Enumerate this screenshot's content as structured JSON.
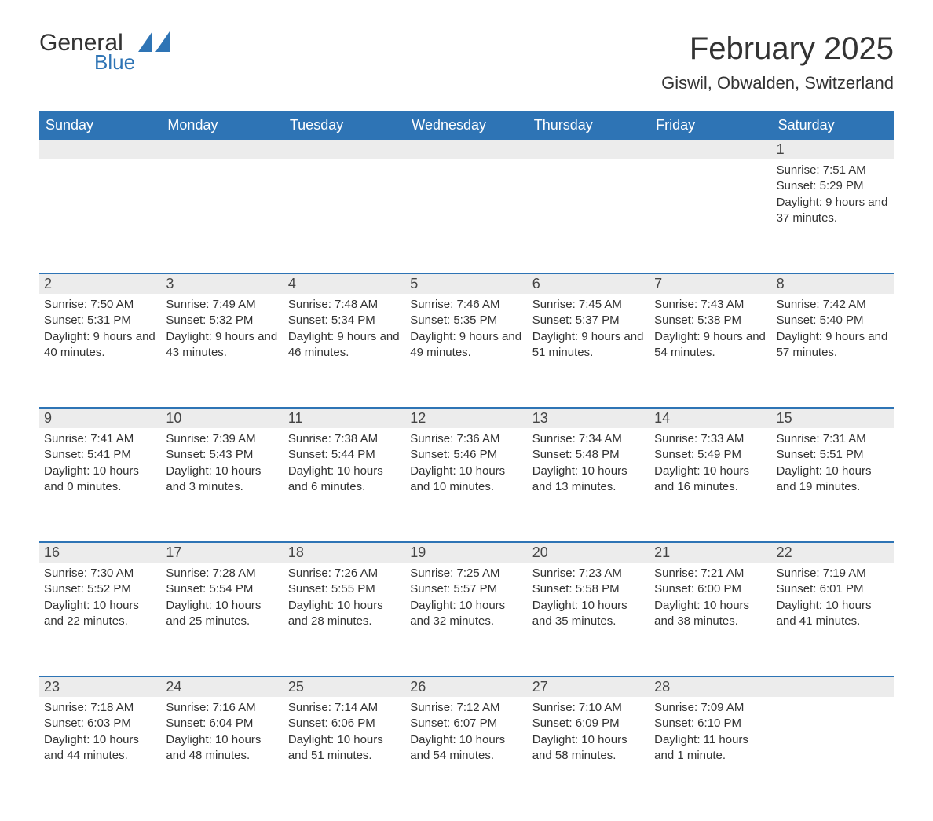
{
  "logo": {
    "general": "General",
    "blue": "Blue",
    "brand_color": "#2e74b5"
  },
  "title": "February 2025",
  "location": "Giswil, Obwalden, Switzerland",
  "colors": {
    "header_bg": "#2e74b5",
    "header_text": "#ffffff",
    "stripe_bg": "#ececec",
    "text": "#333333",
    "rule": "#2e74b5"
  },
  "weekdays": [
    "Sunday",
    "Monday",
    "Tuesday",
    "Wednesday",
    "Thursday",
    "Friday",
    "Saturday"
  ],
  "weeks": [
    [
      null,
      null,
      null,
      null,
      null,
      null,
      {
        "day": "1",
        "sunrise": "Sunrise: 7:51 AM",
        "sunset": "Sunset: 5:29 PM",
        "daylight": "Daylight: 9 hours and 37 minutes."
      }
    ],
    [
      {
        "day": "2",
        "sunrise": "Sunrise: 7:50 AM",
        "sunset": "Sunset: 5:31 PM",
        "daylight": "Daylight: 9 hours and 40 minutes."
      },
      {
        "day": "3",
        "sunrise": "Sunrise: 7:49 AM",
        "sunset": "Sunset: 5:32 PM",
        "daylight": "Daylight: 9 hours and 43 minutes."
      },
      {
        "day": "4",
        "sunrise": "Sunrise: 7:48 AM",
        "sunset": "Sunset: 5:34 PM",
        "daylight": "Daylight: 9 hours and 46 minutes."
      },
      {
        "day": "5",
        "sunrise": "Sunrise: 7:46 AM",
        "sunset": "Sunset: 5:35 PM",
        "daylight": "Daylight: 9 hours and 49 minutes."
      },
      {
        "day": "6",
        "sunrise": "Sunrise: 7:45 AM",
        "sunset": "Sunset: 5:37 PM",
        "daylight": "Daylight: 9 hours and 51 minutes."
      },
      {
        "day": "7",
        "sunrise": "Sunrise: 7:43 AM",
        "sunset": "Sunset: 5:38 PM",
        "daylight": "Daylight: 9 hours and 54 minutes."
      },
      {
        "day": "8",
        "sunrise": "Sunrise: 7:42 AM",
        "sunset": "Sunset: 5:40 PM",
        "daylight": "Daylight: 9 hours and 57 minutes."
      }
    ],
    [
      {
        "day": "9",
        "sunrise": "Sunrise: 7:41 AM",
        "sunset": "Sunset: 5:41 PM",
        "daylight": "Daylight: 10 hours and 0 minutes."
      },
      {
        "day": "10",
        "sunrise": "Sunrise: 7:39 AM",
        "sunset": "Sunset: 5:43 PM",
        "daylight": "Daylight: 10 hours and 3 minutes."
      },
      {
        "day": "11",
        "sunrise": "Sunrise: 7:38 AM",
        "sunset": "Sunset: 5:44 PM",
        "daylight": "Daylight: 10 hours and 6 minutes."
      },
      {
        "day": "12",
        "sunrise": "Sunrise: 7:36 AM",
        "sunset": "Sunset: 5:46 PM",
        "daylight": "Daylight: 10 hours and 10 minutes."
      },
      {
        "day": "13",
        "sunrise": "Sunrise: 7:34 AM",
        "sunset": "Sunset: 5:48 PM",
        "daylight": "Daylight: 10 hours and 13 minutes."
      },
      {
        "day": "14",
        "sunrise": "Sunrise: 7:33 AM",
        "sunset": "Sunset: 5:49 PM",
        "daylight": "Daylight: 10 hours and 16 minutes."
      },
      {
        "day": "15",
        "sunrise": "Sunrise: 7:31 AM",
        "sunset": "Sunset: 5:51 PM",
        "daylight": "Daylight: 10 hours and 19 minutes."
      }
    ],
    [
      {
        "day": "16",
        "sunrise": "Sunrise: 7:30 AM",
        "sunset": "Sunset: 5:52 PM",
        "daylight": "Daylight: 10 hours and 22 minutes."
      },
      {
        "day": "17",
        "sunrise": "Sunrise: 7:28 AM",
        "sunset": "Sunset: 5:54 PM",
        "daylight": "Daylight: 10 hours and 25 minutes."
      },
      {
        "day": "18",
        "sunrise": "Sunrise: 7:26 AM",
        "sunset": "Sunset: 5:55 PM",
        "daylight": "Daylight: 10 hours and 28 minutes."
      },
      {
        "day": "19",
        "sunrise": "Sunrise: 7:25 AM",
        "sunset": "Sunset: 5:57 PM",
        "daylight": "Daylight: 10 hours and 32 minutes."
      },
      {
        "day": "20",
        "sunrise": "Sunrise: 7:23 AM",
        "sunset": "Sunset: 5:58 PM",
        "daylight": "Daylight: 10 hours and 35 minutes."
      },
      {
        "day": "21",
        "sunrise": "Sunrise: 7:21 AM",
        "sunset": "Sunset: 6:00 PM",
        "daylight": "Daylight: 10 hours and 38 minutes."
      },
      {
        "day": "22",
        "sunrise": "Sunrise: 7:19 AM",
        "sunset": "Sunset: 6:01 PM",
        "daylight": "Daylight: 10 hours and 41 minutes."
      }
    ],
    [
      {
        "day": "23",
        "sunrise": "Sunrise: 7:18 AM",
        "sunset": "Sunset: 6:03 PM",
        "daylight": "Daylight: 10 hours and 44 minutes."
      },
      {
        "day": "24",
        "sunrise": "Sunrise: 7:16 AM",
        "sunset": "Sunset: 6:04 PM",
        "daylight": "Daylight: 10 hours and 48 minutes."
      },
      {
        "day": "25",
        "sunrise": "Sunrise: 7:14 AM",
        "sunset": "Sunset: 6:06 PM",
        "daylight": "Daylight: 10 hours and 51 minutes."
      },
      {
        "day": "26",
        "sunrise": "Sunrise: 7:12 AM",
        "sunset": "Sunset: 6:07 PM",
        "daylight": "Daylight: 10 hours and 54 minutes."
      },
      {
        "day": "27",
        "sunrise": "Sunrise: 7:10 AM",
        "sunset": "Sunset: 6:09 PM",
        "daylight": "Daylight: 10 hours and 58 minutes."
      },
      {
        "day": "28",
        "sunrise": "Sunrise: 7:09 AM",
        "sunset": "Sunset: 6:10 PM",
        "daylight": "Daylight: 11 hours and 1 minute."
      },
      null
    ]
  ]
}
